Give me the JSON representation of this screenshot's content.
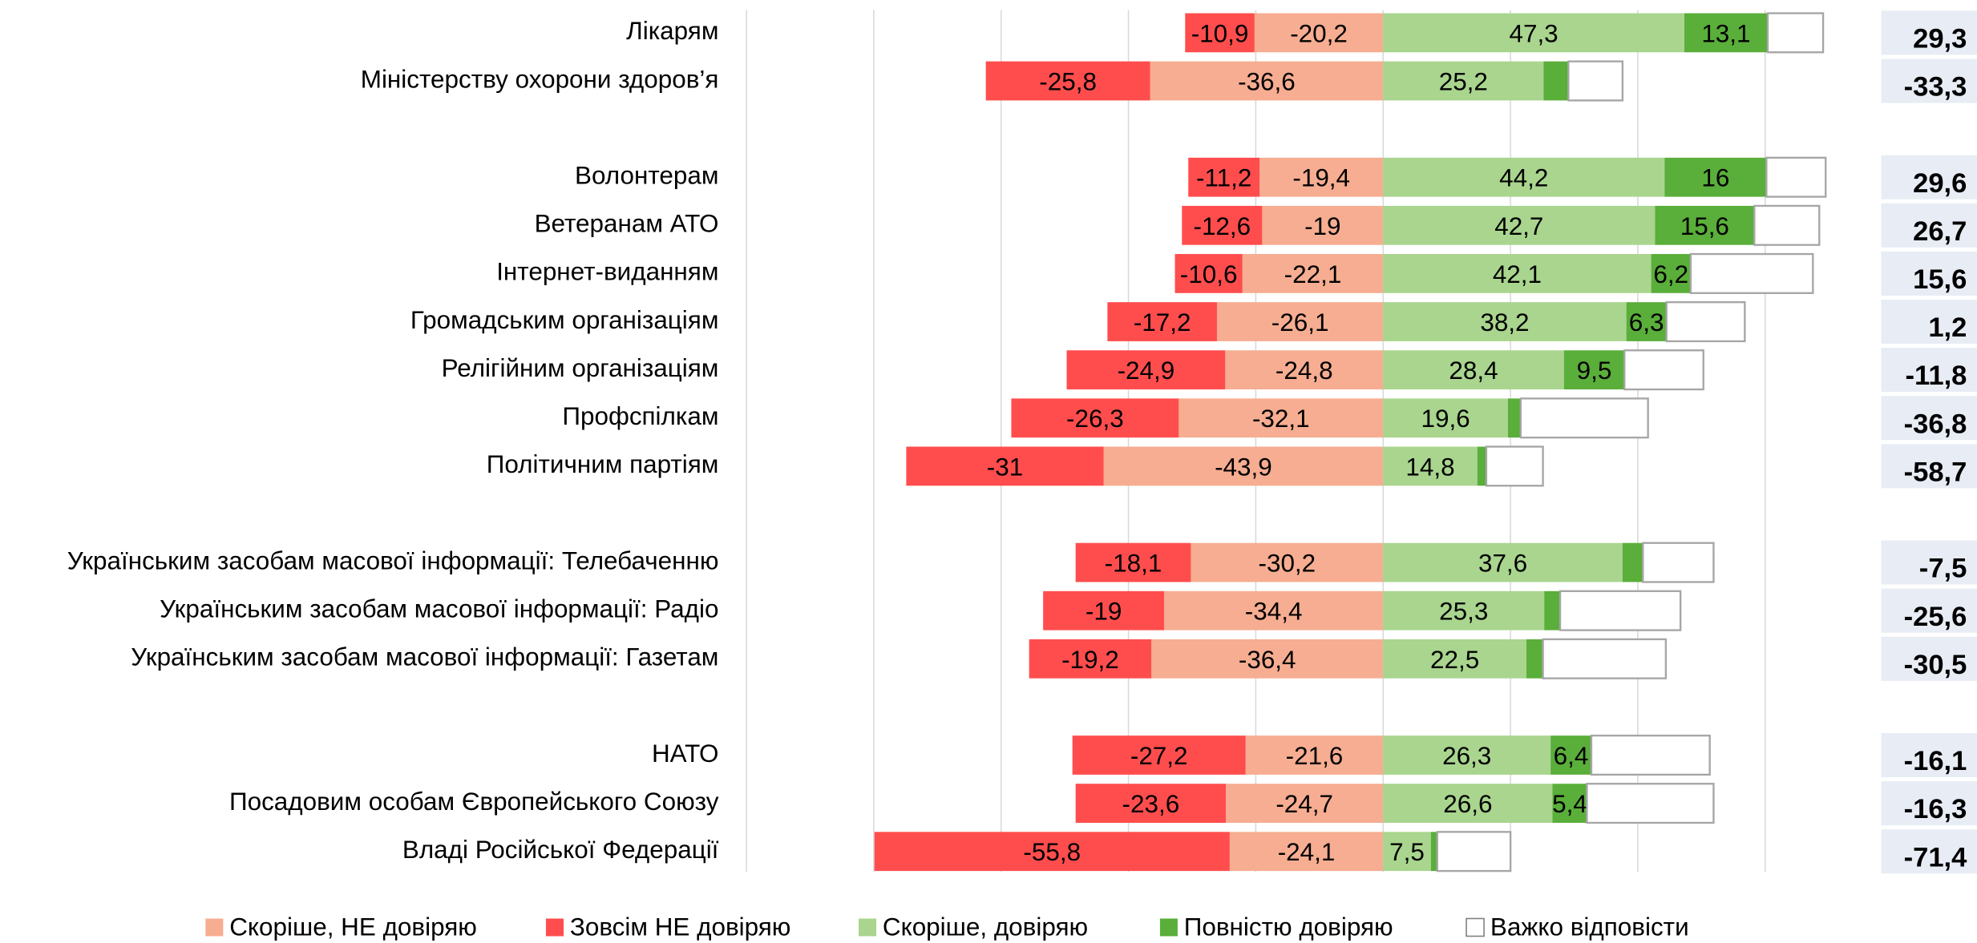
{
  "chart_data": {
    "type": "diverging-stacked-bar",
    "categories": [
      "Лікарям",
      "Міністерству охорони здоров’я",
      null,
      "Волонтерам",
      "Ветеранам АТО",
      "Інтернет-виданням",
      "Громадським організаціям",
      "Релігійним організаціям",
      "Профспілкам",
      "Політичним партіям",
      null,
      "Українським засобам масової інформації: Телебаченню",
      "Українським засобам масової інформації: Радіо",
      "Українським засобам масової інформації: Газетам",
      null,
      "НАТО",
      "Посадовим особам Європейського Союзу",
      "Владі Російської Федерації"
    ],
    "series": [
      {
        "name": "Скоріше, НЕ довіряю",
        "color": "#f6ad91",
        "values": [
          -20.2,
          -36.6,
          null,
          -19.4,
          -19,
          -22.1,
          -26.1,
          -24.8,
          -32.1,
          -43.9,
          null,
          -30.2,
          -34.4,
          -36.4,
          null,
          -21.6,
          -24.7,
          -24.1
        ],
        "value_labels": [
          "-20,2",
          "-36,6",
          null,
          "-19,4",
          "-19",
          "-22,1",
          "-26,1",
          "-24,8",
          "-32,1",
          "-43,9",
          null,
          "-30,2",
          "-34,4",
          "-36,4",
          null,
          "-21,6",
          "-24,7",
          "-24,1"
        ]
      },
      {
        "name": "Зовсім НЕ довіряю",
        "color": "#ff4d4d",
        "values": [
          -10.9,
          -25.8,
          null,
          -11.2,
          -12.6,
          -10.6,
          -17.2,
          -24.9,
          -26.3,
          -31,
          null,
          -18.1,
          -19,
          -19.2,
          null,
          -27.2,
          -23.6,
          -55.8
        ],
        "value_labels": [
          "-10,9",
          "-25,8",
          null,
          "-11,2",
          "-12,6",
          "-10,6",
          "-17,2",
          "-24,9",
          "-26,3",
          "-31",
          null,
          "-18,1",
          "-19",
          "-19,2",
          null,
          "-27,2",
          "-23,6",
          "-55,8"
        ]
      },
      {
        "name": "Скоріше, довіряю",
        "color": "#a9d58e",
        "values": [
          47.3,
          25.2,
          null,
          44.2,
          42.7,
          42.1,
          38.2,
          28.4,
          19.6,
          14.8,
          null,
          37.6,
          25.3,
          22.5,
          null,
          26.3,
          26.6,
          7.5
        ],
        "value_labels": [
          "47,3",
          "25,2",
          null,
          "44,2",
          "42,7",
          "42,1",
          "38,2",
          "28,4",
          "19,6",
          "14,8",
          null,
          "37,6",
          "25,3",
          "22,5",
          null,
          "26,3",
          "26,6",
          "7,5"
        ]
      },
      {
        "name": "Повністю довіряю",
        "color": "#5aae3a",
        "values": [
          13.1,
          3.9,
          null,
          16,
          15.6,
          6.2,
          6.3,
          9.5,
          2,
          1.4,
          null,
          3.2,
          2.5,
          2.6,
          null,
          6.4,
          5.4,
          1
        ],
        "value_labels": [
          "13,1",
          "3,9",
          null,
          "16",
          "15,6",
          "6,2",
          "6,3",
          "9,5",
          "2",
          "1,4",
          null,
          "3,2",
          "2,5",
          "2,6",
          null,
          "6,4",
          "5,4",
          "1"
        ]
      },
      {
        "name": "Важко відповісти",
        "color": "#ffffff",
        "values": [
          8.7,
          8.5,
          null,
          9.3,
          10.2,
          19.2,
          12.3,
          12.4,
          20.0,
          8.9,
          null,
          11.1,
          18.9,
          19.3,
          null,
          18.6,
          19.9,
          11.5
        ]
      }
    ],
    "balance": [
      29.3,
      -33.3,
      null,
      29.6,
      26.7,
      15.6,
      1.2,
      -11.8,
      -36.8,
      -58.7,
      null,
      -7.5,
      -25.6,
      -30.5,
      null,
      -16.1,
      -16.3,
      -71.4
    ],
    "balance_labels": [
      "29,3",
      "-33,3",
      null,
      "29,6",
      "26,7",
      "15,6",
      "1,2",
      "-11,8",
      "-36,8",
      "-58,7",
      null,
      "-7,5",
      "-25,6",
      "-30,5",
      null,
      "-16,1",
      "-16,3",
      "-71,4"
    ],
    "xlim": [
      -100,
      70
    ],
    "xticks": [
      -100,
      -80,
      -60,
      -40,
      -20,
      0,
      20,
      40,
      60
    ],
    "grid": true
  }
}
